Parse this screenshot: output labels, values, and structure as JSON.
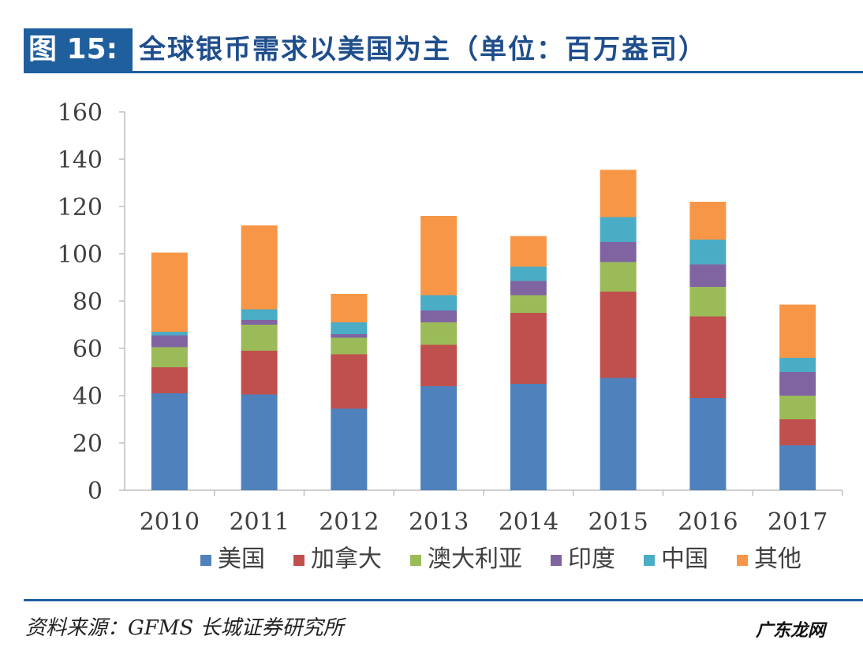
{
  "header": {
    "figure_label": "图 15:",
    "title": "全球银币需求以美国为主（单位：百万盎司）"
  },
  "footer": {
    "source": "资料来源：GFMS  长城证券研究所",
    "watermark": "广东龙网"
  },
  "chart_data": {
    "type": "bar",
    "stacked": true,
    "title": "全球银币需求以美国为主（单位：百万盎司）",
    "xlabel": "",
    "ylabel": "",
    "ylim": [
      0,
      160
    ],
    "yticks": [
      0,
      20,
      40,
      60,
      80,
      100,
      120,
      140,
      160
    ],
    "grid": false,
    "legend_position": "bottom",
    "categories": [
      "2010",
      "2011",
      "2012",
      "2013",
      "2014",
      "2015",
      "2016",
      "2017"
    ],
    "series": [
      {
        "name": "美国",
        "color": "#4f81bd",
        "values": [
          41,
          40.5,
          34.5,
          44,
          45,
          47.5,
          39,
          19
        ]
      },
      {
        "name": "加拿大",
        "color": "#c0504d",
        "values": [
          11,
          18.5,
          23,
          17.5,
          30,
          36.5,
          34.5,
          11
        ]
      },
      {
        "name": "澳大利亚",
        "color": "#9bbb59",
        "values": [
          8.5,
          11,
          7,
          9.5,
          7.5,
          12.5,
          12.5,
          10
        ]
      },
      {
        "name": "印度",
        "color": "#8064a2",
        "values": [
          5,
          2,
          1.5,
          5,
          6,
          8.5,
          9.5,
          10
        ]
      },
      {
        "name": "中国",
        "color": "#4bacc6",
        "values": [
          1.5,
          4.5,
          5,
          6.5,
          6,
          10.5,
          10.5,
          6
        ]
      },
      {
        "name": "其他",
        "color": "#f79646",
        "values": [
          33.5,
          35.5,
          12,
          33.5,
          13,
          20,
          16,
          22.5
        ]
      }
    ]
  }
}
